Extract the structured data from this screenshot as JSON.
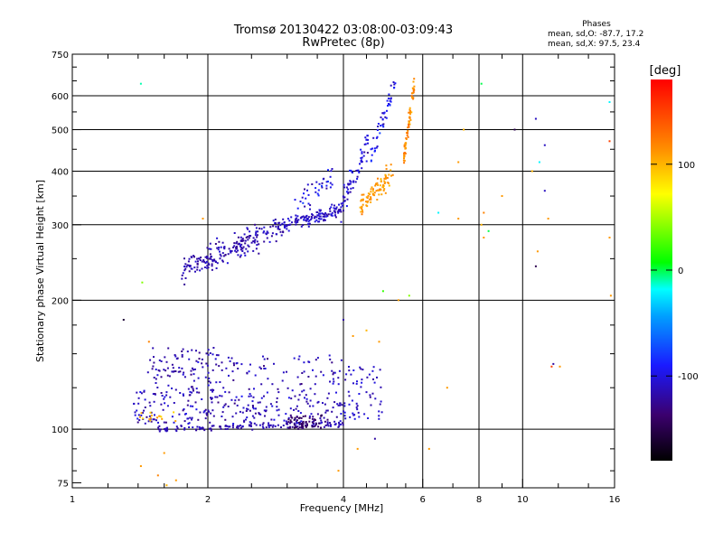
{
  "chart_data": {
    "type": "scatter",
    "title": "Tromsø 20130422 03:08:00-03:09:43",
    "subtitle": "RwPretec (8p)",
    "xlabel": "Frequency [MHz]",
    "ylabel": "Stationary phase Virtual Height [km]",
    "x_scale": "log",
    "y_scale": "log",
    "xlim": [
      1,
      16
    ],
    "ylim": [
      73,
      750
    ],
    "x_ticks": [
      1,
      2,
      4,
      6,
      8,
      10,
      16
    ],
    "x_tick_labels": [
      "1",
      "2",
      "4",
      "6",
      "8",
      "10",
      "16"
    ],
    "y_ticks": [
      75,
      100,
      200,
      300,
      400,
      500,
      600,
      750
    ],
    "y_tick_labels": [
      "75",
      "100",
      "200",
      "300",
      "400",
      "500",
      "600",
      "750"
    ],
    "x_gridlines": [
      2,
      4,
      6,
      8,
      10
    ],
    "y_gridlines": [
      100,
      200,
      300,
      400,
      500,
      600
    ],
    "stats": {
      "heading": "Phases",
      "o_line": "mean, sd,O: -87.7, 17.2",
      "x_line": "mean, sd,X:  97.5, 23.4"
    },
    "colorbar": {
      "label": "[deg]",
      "range": [
        -180,
        180
      ],
      "ticks": [
        -100,
        0,
        100
      ],
      "tick_labels": [
        "-100",
        "0",
        "100"
      ],
      "colors": [
        "#000000",
        "#3b006e",
        "#1a1aff",
        "#00a0ff",
        "#00ffff",
        "#00ff00",
        "#ffff00",
        "#ff8c00",
        "#ff0000"
      ]
    },
    "point_color_note_values_deg": true,
    "clusters": [
      {
        "xr": [
          1.75,
          2.95
        ],
        "y0": 235,
        "y1": 300,
        "n": 220,
        "p": [
          -115,
          12
        ],
        "jit": 0.06
      },
      {
        "xr": [
          2.95,
          3.95
        ],
        "y0": 300,
        "y1": 325,
        "n": 120,
        "p": [
          -110,
          12
        ],
        "jit": 0.035
      },
      {
        "xr": [
          3.1,
          3.8
        ],
        "y0": 325,
        "y1": 385,
        "n": 40,
        "p": [
          -100,
          20
        ],
        "jit": 0.07
      },
      {
        "xr": [
          3.95,
          4.55
        ],
        "y0": 330,
        "y1": 470,
        "n": 70,
        "p": [
          -105,
          15
        ],
        "jit": 0.07
      },
      {
        "xr": [
          4.35,
          5.15
        ],
        "y0": 330,
        "y1": 400,
        "n": 90,
        "p": [
          110,
          12
        ],
        "jit": 0.05
      },
      {
        "xr": [
          4.6,
          5.25
        ],
        "y0": 430,
        "y1": 660,
        "n": 50,
        "p": [
          -100,
          20
        ],
        "jit": 0.05
      },
      {
        "xr": [
          5.45,
          5.75
        ],
        "y0": 430,
        "y1": 640,
        "n": 70,
        "p": [
          115,
          15
        ],
        "jit": 0.04
      },
      {
        "xr": [
          1.55,
          4.0
        ],
        "y0": 100,
        "y1": 103,
        "n": 140,
        "p": [
          -115,
          8
        ],
        "jit": 0.015
      },
      {
        "xr": [
          1.35,
          4.0
        ],
        "y0": 103,
        "y1": 125,
        "n": 260,
        "p": [
          -112,
          15
        ],
        "jit": 0.0
      },
      {
        "xr": [
          1.45,
          4.0
        ],
        "y0": 125,
        "y1": 150,
        "n": 120,
        "p": [
          -112,
          15
        ],
        "jit": 0.0
      },
      {
        "xr": [
          1.5,
          2.1
        ],
        "y0": 135,
        "y1": 155,
        "n": 40,
        "p": [
          -120,
          10
        ],
        "jit": 0.0
      },
      {
        "xr": [
          3.0,
          3.7
        ],
        "y0": 100,
        "y1": 108,
        "n": 60,
        "p": [
          -140,
          10
        ],
        "jit": 0.0
      },
      {
        "xr": [
          4.0,
          4.9
        ],
        "y0": 105,
        "y1": 140,
        "n": 60,
        "p": [
          -110,
          12
        ],
        "jit": 0.0
      },
      {
        "xr": [
          1.4,
          1.7
        ],
        "y0": 104,
        "y1": 110,
        "n": 15,
        "p": [
          100,
          15
        ],
        "jit": 0.0
      }
    ],
    "outliers": [
      {
        "f": 1.42,
        "h": 640,
        "p": -10
      },
      {
        "f": 1.3,
        "h": 180,
        "p": -160
      },
      {
        "f": 1.43,
        "h": 220,
        "p": 40
      },
      {
        "f": 1.48,
        "h": 160,
        "p": 120
      },
      {
        "f": 1.95,
        "h": 310,
        "p": 110
      },
      {
        "f": 1.42,
        "h": 82,
        "p": 110
      },
      {
        "f": 1.55,
        "h": 78,
        "p": 120
      },
      {
        "f": 1.62,
        "h": 74,
        "p": 100
      },
      {
        "f": 1.7,
        "h": 76,
        "p": 110
      },
      {
        "f": 1.6,
        "h": 88,
        "p": 110
      },
      {
        "f": 4.9,
        "h": 210,
        "p": 20
      },
      {
        "f": 5.3,
        "h": 200,
        "p": 110
      },
      {
        "f": 5.6,
        "h": 205,
        "p": 40
      },
      {
        "f": 4.7,
        "h": 95,
        "p": -120
      },
      {
        "f": 4.3,
        "h": 90,
        "p": 110
      },
      {
        "f": 3.9,
        "h": 80,
        "p": 110
      },
      {
        "f": 4.0,
        "h": 180,
        "p": -120
      },
      {
        "f": 4.2,
        "h": 165,
        "p": 110
      },
      {
        "f": 4.5,
        "h": 170,
        "p": 100
      },
      {
        "f": 4.8,
        "h": 160,
        "p": 110
      },
      {
        "f": 6.2,
        "h": 90,
        "p": 110
      },
      {
        "f": 6.5,
        "h": 320,
        "p": -20
      },
      {
        "f": 6.8,
        "h": 125,
        "p": 110
      },
      {
        "f": 7.2,
        "h": 310,
        "p": 110
      },
      {
        "f": 7.2,
        "h": 420,
        "p": 110
      },
      {
        "f": 7.4,
        "h": 500,
        "p": 100
      },
      {
        "f": 8.1,
        "h": 640,
        "p": 0
      },
      {
        "f": 8.2,
        "h": 280,
        "p": 110
      },
      {
        "f": 8.4,
        "h": 290,
        "p": 0
      },
      {
        "f": 8.1,
        "h": 300,
        "p": 100
      },
      {
        "f": 8.2,
        "h": 320,
        "p": 120
      },
      {
        "f": 9.0,
        "h": 350,
        "p": 110
      },
      {
        "f": 9.6,
        "h": 500,
        "p": -150
      },
      {
        "f": 10.7,
        "h": 530,
        "p": -110
      },
      {
        "f": 10.7,
        "h": 240,
        "p": -150
      },
      {
        "f": 10.8,
        "h": 260,
        "p": 110
      },
      {
        "f": 10.9,
        "h": 420,
        "p": -20
      },
      {
        "f": 11.2,
        "h": 460,
        "p": -110
      },
      {
        "f": 11.2,
        "h": 360,
        "p": -110
      },
      {
        "f": 11.4,
        "h": 310,
        "p": 110
      },
      {
        "f": 11.6,
        "h": 140,
        "p": 150
      },
      {
        "f": 11.7,
        "h": 142,
        "p": -120
      },
      {
        "f": 12.1,
        "h": 140,
        "p": 110
      },
      {
        "f": 15.6,
        "h": 580,
        "p": -20
      },
      {
        "f": 15.6,
        "h": 470,
        "p": 150
      },
      {
        "f": 15.6,
        "h": 280,
        "p": 110
      },
      {
        "f": 15.7,
        "h": 205,
        "p": 110
      },
      {
        "f": 10.5,
        "h": 400,
        "p": 100
      }
    ]
  }
}
